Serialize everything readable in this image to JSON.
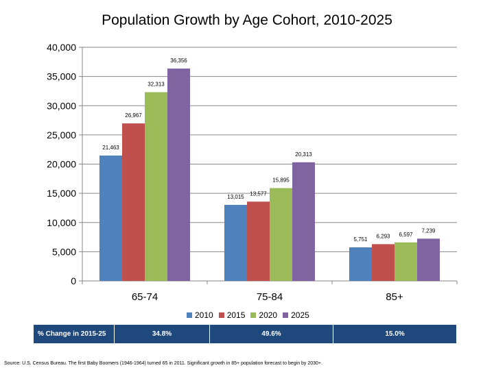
{
  "chart_data": {
    "type": "bar",
    "title": "Population Growth by Age Cohort, 2010-2025",
    "categories": [
      "65-74",
      "75-84",
      "85+"
    ],
    "series": [
      {
        "name": "2010",
        "color": "#4f81bd",
        "values": [
          21463,
          13015,
          5751
        ],
        "labels": [
          "21,463",
          "13,015",
          "5,751"
        ]
      },
      {
        "name": "2015",
        "color": "#c0504d",
        "values": [
          26967,
          13577,
          6293
        ],
        "labels": [
          "26,967",
          "13,577",
          "6,293"
        ]
      },
      {
        "name": "2020",
        "color": "#9bbb59",
        "values": [
          32313,
          15895,
          6597
        ],
        "labels": [
          "32,313",
          "15,895",
          "6,597"
        ]
      },
      {
        "name": "2025",
        "color": "#8064a2",
        "values": [
          36356,
          20313,
          7239
        ],
        "labels": [
          "36,356",
          "20,313",
          "7,239"
        ]
      }
    ],
    "ylim": [
      0,
      40000
    ],
    "yticks": [
      0,
      5000,
      10000,
      15000,
      20000,
      25000,
      30000,
      35000,
      40000
    ],
    "ytick_labels": [
      "0",
      "5,000",
      "10,000",
      "15,000",
      "20,000",
      "25,000",
      "30,000",
      "35,000",
      "40,000"
    ],
    "xlabel": "",
    "ylabel": "",
    "grid": true,
    "legend_position": "bottom"
  },
  "change_row": {
    "label": "% Change in 2015-25",
    "values": [
      "34.8%",
      "49.6%",
      "15.0%"
    ]
  },
  "source_note": "Source: U.S. Census Bureau. The first Baby Boomers (1946-1964) turned 65 in 2011. Significant growth in 85+ population forecast to begin by 2030+.",
  "colors": {
    "table_bg": "#1f497d",
    "grid": "#868686"
  }
}
